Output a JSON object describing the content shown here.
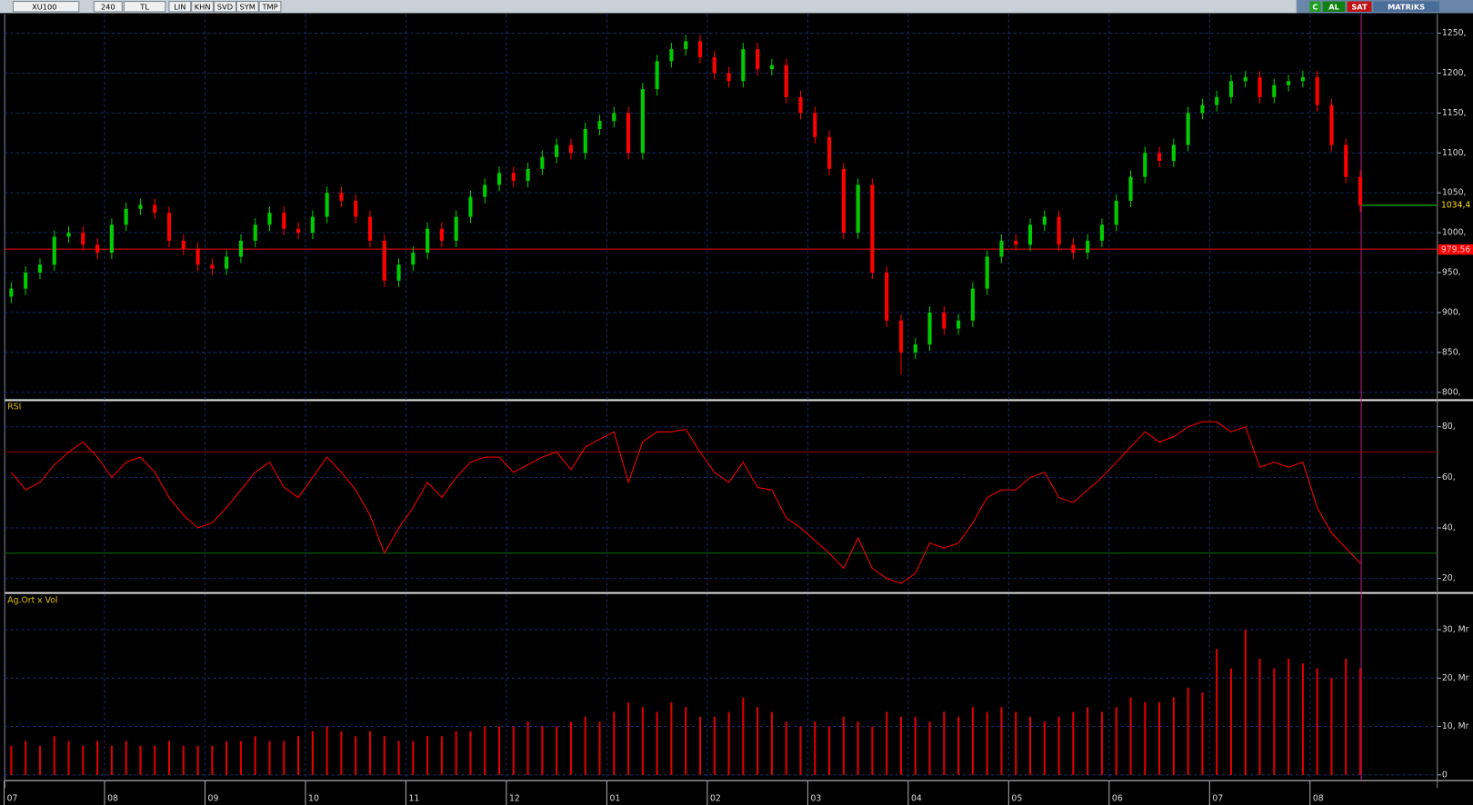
{
  "toolbar": {
    "symbol": "XU100",
    "period": "240",
    "currency": "TL",
    "buttons": [
      "LIN",
      "KHN",
      "SVD",
      "SYM",
      "TMP"
    ],
    "right": [
      "C",
      "AL",
      "SAT",
      "MATRiKS"
    ]
  },
  "chart_data": [
    {
      "type": "candlestick",
      "categories": [
        "07",
        null,
        null,
        null,
        null,
        null,
        null,
        "08",
        null,
        null,
        null,
        null,
        null,
        null,
        "09",
        null,
        null,
        null,
        null,
        null,
        null,
        "10",
        null,
        null,
        null,
        null,
        null,
        null,
        "11",
        null,
        null,
        null,
        null,
        null,
        null,
        "12",
        null,
        null,
        null,
        null,
        null,
        null,
        "01",
        null,
        null,
        null,
        null,
        null,
        null,
        "02",
        null,
        null,
        null,
        null,
        null,
        null,
        "03",
        null,
        null,
        null,
        null,
        null,
        null,
        "04",
        null,
        null,
        null,
        null,
        null,
        null,
        "05",
        null,
        null,
        null,
        null,
        null,
        null,
        "06",
        null,
        null,
        null,
        null,
        null,
        null,
        "07",
        null,
        null,
        null,
        null,
        null,
        null,
        "08",
        null,
        null,
        null
      ],
      "open": [
        920,
        930,
        950,
        960,
        995,
        1000,
        985,
        975,
        1010,
        1030,
        1035,
        1025,
        990,
        980,
        960,
        955,
        970,
        990,
        1010,
        1025,
        1005,
        1000,
        1020,
        1050,
        1040,
        1020,
        990,
        940,
        960,
        975,
        1005,
        990,
        1020,
        1045,
        1060,
        1075,
        1065,
        1080,
        1095,
        1110,
        1100,
        1130,
        1140,
        1150,
        1100,
        1180,
        1215,
        1230,
        1240,
        1220,
        1200,
        1190,
        1230,
        1205,
        1210,
        1170,
        1150,
        1120,
        1080,
        1000,
        1060,
        950,
        890,
        850,
        860,
        900,
        880,
        890,
        930,
        970,
        990,
        985,
        1010,
        1020,
        985,
        975,
        990,
        1010,
        1040,
        1070,
        1100,
        1090,
        1110,
        1150,
        1160,
        1170,
        1190,
        1195,
        1170,
        1185,
        1190,
        1195,
        1160,
        1110,
        1070
      ],
      "high": [
        938,
        958,
        968,
        1003,
        1008,
        1008,
        993,
        1018,
        1038,
        1043,
        1043,
        1033,
        998,
        988,
        968,
        978,
        998,
        1018,
        1033,
        1033,
        1013,
        1028,
        1058,
        1058,
        1048,
        1028,
        998,
        968,
        983,
        1013,
        1013,
        1028,
        1053,
        1068,
        1083,
        1083,
        1088,
        1103,
        1118,
        1118,
        1138,
        1148,
        1158,
        1158,
        1188,
        1223,
        1238,
        1248,
        1248,
        1228,
        1208,
        1238,
        1238,
        1218,
        1218,
        1178,
        1158,
        1128,
        1088,
        1068,
        1068,
        958,
        898,
        868,
        908,
        908,
        898,
        938,
        978,
        998,
        998,
        1018,
        1028,
        1028,
        993,
        998,
        1018,
        1048,
        1078,
        1108,
        1108,
        1118,
        1158,
        1168,
        1178,
        1198,
        1203,
        1203,
        1193,
        1198,
        1203,
        1203,
        1168,
        1118,
        1078
      ],
      "low": [
        912,
        922,
        942,
        952,
        987,
        977,
        967,
        967,
        1002,
        1022,
        1017,
        982,
        972,
        952,
        947,
        947,
        962,
        982,
        1002,
        997,
        992,
        992,
        1012,
        1032,
        1012,
        982,
        932,
        932,
        952,
        967,
        982,
        982,
        1012,
        1037,
        1052,
        1057,
        1057,
        1072,
        1087,
        1092,
        1092,
        1122,
        1132,
        1092,
        1092,
        1172,
        1207,
        1222,
        1212,
        1192,
        1182,
        1182,
        1197,
        1197,
        1162,
        1142,
        1112,
        1072,
        992,
        992,
        942,
        882,
        822,
        842,
        852,
        872,
        872,
        882,
        922,
        962,
        977,
        977,
        1002,
        977,
        967,
        967,
        982,
        1002,
        1032,
        1062,
        1082,
        1082,
        1102,
        1142,
        1152,
        1162,
        1182,
        1162,
        1162,
        1177,
        1182,
        1152,
        1102,
        1062,
        1026
      ],
      "close": [
        930,
        950,
        960,
        995,
        1000,
        985,
        975,
        1010,
        1030,
        1035,
        1025,
        990,
        980,
        960,
        955,
        970,
        990,
        1010,
        1025,
        1005,
        1000,
        1020,
        1050,
        1040,
        1020,
        990,
        940,
        960,
        975,
        1005,
        990,
        1020,
        1045,
        1060,
        1075,
        1065,
        1080,
        1095,
        1110,
        1100,
        1130,
        1140,
        1150,
        1100,
        1180,
        1215,
        1230,
        1240,
        1220,
        1200,
        1190,
        1230,
        1205,
        1210,
        1170,
        1150,
        1120,
        1080,
        1000,
        1060,
        950,
        890,
        850,
        860,
        900,
        880,
        890,
        930,
        970,
        990,
        985,
        1010,
        1020,
        985,
        975,
        990,
        1010,
        1040,
        1070,
        1100,
        1090,
        1110,
        1150,
        1160,
        1170,
        1190,
        1195,
        1170,
        1185,
        1190,
        1195,
        1160,
        1110,
        1070,
        1034.4
      ],
      "up_color": "#00cc00",
      "down_color": "#ff0000",
      "ylim": [
        792,
        1274
      ],
      "yticks": [
        {
          "value": 800,
          "label": "800,"
        },
        {
          "value": 850,
          "label": "850,"
        },
        {
          "value": 900,
          "label": "900,"
        },
        {
          "value": 950,
          "label": "950,"
        },
        {
          "value": 1000,
          "label": "1000,"
        },
        {
          "value": 1050,
          "label": "1050,"
        },
        {
          "value": 1100,
          "label": "1100,"
        },
        {
          "value": 1150,
          "label": "1150,"
        },
        {
          "value": 1200,
          "label": "1200,"
        },
        {
          "value": 1250,
          "label": "1250,"
        }
      ],
      "lines": [
        {
          "value": 979.56,
          "label": "979,56",
          "color": "#ff0000"
        },
        {
          "value": 1034.4,
          "label": "1034,4",
          "color": "#00cc00"
        }
      ],
      "grid": true
    },
    {
      "type": "line",
      "title": "RSI",
      "color": "#ff0000",
      "values": [
        62,
        55,
        58,
        65,
        70,
        74,
        68,
        60,
        66,
        68,
        62,
        52,
        45,
        40,
        42,
        48,
        55,
        62,
        66,
        56,
        52,
        60,
        68,
        62,
        55,
        45,
        30,
        40,
        48,
        58,
        52,
        60,
        66,
        68,
        68,
        62,
        65,
        68,
        70,
        63,
        72,
        75,
        78,
        58,
        74,
        78,
        78,
        79,
        70,
        62,
        58,
        66,
        56,
        55,
        44,
        40,
        35,
        30,
        24,
        36,
        24,
        20,
        18,
        22,
        34,
        32,
        34,
        42,
        52,
        55,
        55,
        60,
        62,
        52,
        50,
        55,
        60,
        66,
        72,
        78,
        74,
        76,
        80,
        82,
        82,
        78,
        80,
        64,
        66,
        64,
        66,
        48,
        38,
        32,
        26
      ],
      "ylim": [
        15,
        87
      ],
      "yticks": [
        {
          "value": 20,
          "label": "20,"
        },
        {
          "value": 40,
          "label": "40,"
        },
        {
          "value": 60,
          "label": "60,"
        },
        {
          "value": 80,
          "label": "80,"
        }
      ],
      "lines": [
        {
          "value": 70,
          "color": "#880000"
        },
        {
          "value": 30,
          "color": "#006600"
        }
      ],
      "grid": true
    },
    {
      "type": "bar",
      "title": "Ag.Ort x Vol",
      "color": "#e00000",
      "values": [
        6,
        7,
        6,
        8,
        7,
        6,
        7,
        6,
        7,
        6,
        6,
        7,
        6,
        6,
        6,
        7,
        7,
        8,
        7,
        7,
        8,
        9,
        10,
        9,
        8,
        9,
        8,
        7,
        7,
        8,
        8,
        9,
        9,
        10,
        10,
        10,
        11,
        10,
        10,
        11,
        12,
        11,
        13,
        15,
        14,
        13,
        15,
        14,
        12,
        12,
        13,
        16,
        14,
        13,
        11,
        10,
        11,
        10,
        12,
        11,
        10,
        13,
        12,
        12,
        11,
        13,
        12,
        14,
        13,
        14,
        13,
        12,
        11,
        12,
        13,
        14,
        13,
        14,
        16,
        15,
        15,
        16,
        18,
        17,
        26,
        22,
        30,
        24,
        22,
        24,
        23,
        22,
        20,
        24,
        22
      ],
      "ylim": [
        -0.8,
        37.2
      ],
      "yticks": [
        0,
        {
          "value": 10,
          "label": "10, Mr"
        },
        {
          "value": 20,
          "label": "20, Mr"
        },
        {
          "value": 30,
          "label": "30, Mr"
        }
      ],
      "grid": true
    }
  ]
}
